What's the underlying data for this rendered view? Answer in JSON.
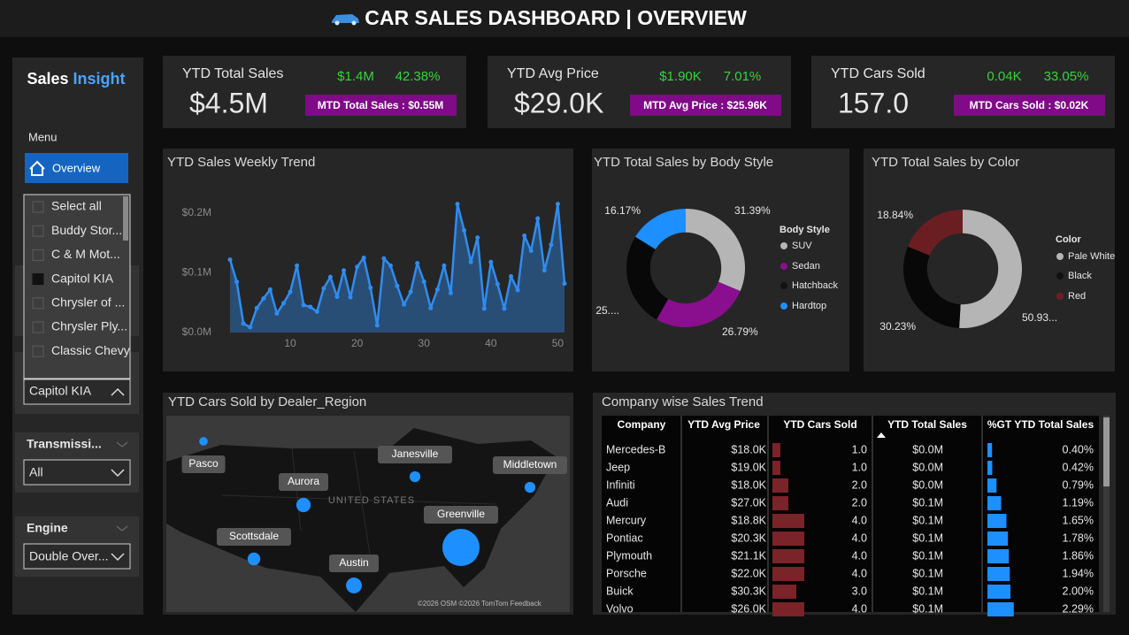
{
  "header": {
    "title": "CAR SALES DASHBOARD | OVERVIEW"
  },
  "sidebar": {
    "brand": [
      "Sales",
      "Insight"
    ],
    "menu_label": "Menu",
    "menu_item": "Overview",
    "dealer_list": {
      "items": [
        "Select all",
        "Buddy Stor...",
        "C & M Mot...",
        "Capitol KIA",
        "Chrysler of ...",
        "Chrysler Ply...",
        "Classic Chevy"
      ],
      "checked": [
        3
      ]
    },
    "dealer_value": "Capitol KIA",
    "filters": [
      {
        "label": "Transmissi...",
        "value": "All"
      },
      {
        "label": "Engine",
        "value": "Double Over..."
      }
    ]
  },
  "kpis": [
    {
      "label": "YTD Total Sales",
      "value": "$4.5M",
      "mtd_value": "$1.4M",
      "change": "42.38%",
      "mtd_label": "MTD Total Sales : $0.55M"
    },
    {
      "label": "YTD Avg Price",
      "value": "$29.0K",
      "mtd_value": "$1.90K",
      "change": "7.01%",
      "mtd_label": "MTD Avg Price : $25.96K"
    },
    {
      "label": "YTD Cars Sold",
      "value": "157.0",
      "mtd_value": "0.04K",
      "change": "33.05%",
      "mtd_label": "MTD Cars Sold : $0.02K"
    }
  ],
  "chart_data": [
    {
      "type": "line",
      "title": "YTD Sales Weekly Trend",
      "x": [
        1,
        2,
        3,
        4,
        5,
        6,
        7,
        8,
        9,
        10,
        11,
        12,
        13,
        14,
        15,
        16,
        17,
        18,
        19,
        20,
        21,
        22,
        23,
        24,
        25,
        26,
        27,
        28,
        29,
        30,
        31,
        32,
        33,
        34,
        35,
        36,
        37,
        38,
        39,
        40,
        41,
        42,
        43,
        44,
        45,
        46,
        47,
        48,
        49,
        50,
        51
      ],
      "values": [
        0.122,
        0.085,
        0.015,
        0.009,
        0.041,
        0.057,
        0.072,
        0.032,
        0.049,
        0.068,
        0.112,
        0.046,
        0.043,
        0.035,
        0.074,
        0.093,
        0.06,
        0.104,
        0.059,
        0.11,
        0.125,
        0.075,
        0.012,
        0.124,
        0.112,
        0.078,
        0.047,
        0.068,
        0.116,
        0.085,
        0.041,
        0.072,
        0.112,
        0.066,
        0.215,
        0.171,
        0.118,
        0.159,
        0.04,
        0.118,
        0.081,
        0.04,
        0.094,
        0.071,
        0.162,
        0.137,
        0.191,
        0.104,
        0.147,
        0.215,
        0.082
      ],
      "color": "#2f8cf0",
      "xlim": [
        1,
        51
      ],
      "ylim": [
        0,
        0.225
      ],
      "xticks": [
        10,
        20,
        30,
        40,
        50
      ],
      "yticks": [
        {
          "value": 0,
          "label": "$0.0M"
        },
        {
          "value": 0.1,
          "label": "$0.1M"
        },
        {
          "value": 0.2,
          "label": "$0.2M"
        }
      ]
    },
    {
      "type": "pie",
      "title": "YTD Total Sales by Body Style",
      "legend_title": "Body Style",
      "categories": [
        "SUV",
        "Sedan",
        "Hatchback",
        "Hardtop"
      ],
      "values": [
        31.39,
        26.79,
        25.65,
        16.17
      ],
      "value_labels": [
        "31.39%",
        "26.79%",
        "25....",
        "16.17%"
      ],
      "colors": [
        "#b5b5b5",
        "#8a0f8f",
        "#080808",
        "#1e8fff"
      ],
      "hole": 0.6
    },
    {
      "type": "pie",
      "title": "YTD Total Sales by Color",
      "legend_title": "Color",
      "categories": [
        "Pale White",
        "Black",
        "Red"
      ],
      "values": [
        50.93,
        30.23,
        18.84
      ],
      "value_labels": [
        "50.93...",
        "30.23%",
        "18.84%"
      ],
      "colors": [
        "#b5b5b5",
        "#080808",
        "#6b1e22"
      ],
      "hole": 0.6
    },
    {
      "type": "map",
      "title": "YTD Cars Sold by Dealer_Region",
      "categories": [
        "Pasco",
        "Aurora",
        "Janesville",
        "Middletown",
        "Scottsdale",
        "Austin",
        "Greenville"
      ],
      "values": [
        5,
        14,
        8,
        8,
        11,
        17,
        94
      ],
      "color": "#1e8fff",
      "annotations": [
        "UNITED STATES",
        "©2026 OSM  ©2026 TomTom  Feedback"
      ]
    }
  ],
  "table": {
    "title": "Company wise Sales Trend",
    "columns": [
      "Company",
      "YTD Avg Price",
      "YTD Cars Sold",
      "YTD Total Sales",
      "%GT YTD Total Sales"
    ],
    "rows": [
      [
        "Mercedes-B",
        "$18.0K",
        "1.0",
        "$0.0M",
        "0.40%"
      ],
      [
        "Jeep",
        "$19.0K",
        "1.0",
        "$0.0M",
        "0.42%"
      ],
      [
        "Infiniti",
        "$18.0K",
        "2.0",
        "$0.0M",
        "0.79%"
      ],
      [
        "Audi",
        "$27.0K",
        "2.0",
        "$0.1M",
        "1.19%"
      ],
      [
        "Mercury",
        "$18.8K",
        "4.0",
        "$0.1M",
        "1.65%"
      ],
      [
        "Pontiac",
        "$20.3K",
        "4.0",
        "$0.1M",
        "1.78%"
      ],
      [
        "Plymouth",
        "$21.1K",
        "4.0",
        "$0.1M",
        "1.86%"
      ],
      [
        "Porsche",
        "$22.0K",
        "4.0",
        "$0.1M",
        "1.94%"
      ],
      [
        "Buick",
        "$30.3K",
        "3.0",
        "$0.1M",
        "2.00%"
      ],
      [
        "Volvo",
        "$26.0K",
        "4.0",
        "$0.1M",
        "2.29%"
      ]
    ]
  }
}
